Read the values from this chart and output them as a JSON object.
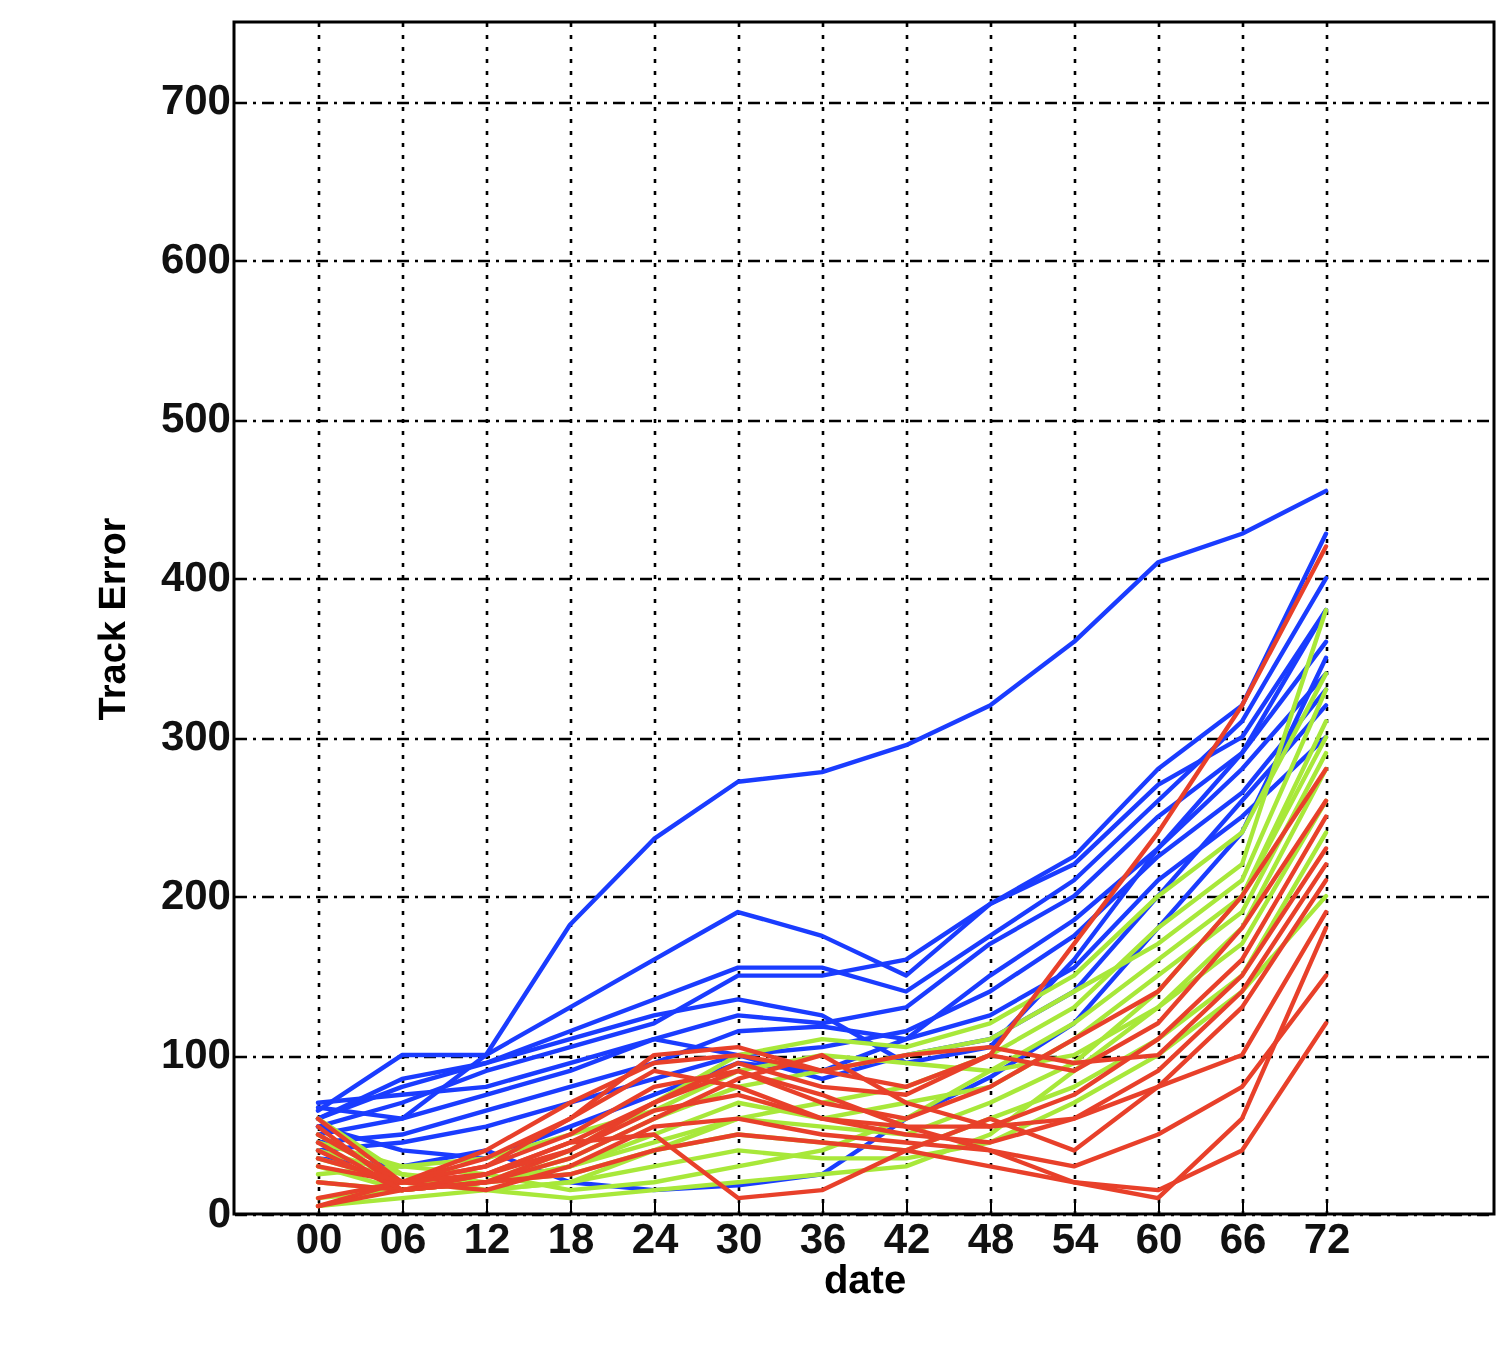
{
  "chart_data": {
    "type": "line",
    "xlabel": "date",
    "ylabel": "Track Error",
    "x": [
      0,
      6,
      12,
      18,
      24,
      30,
      36,
      42,
      48,
      54,
      60,
      66,
      72
    ],
    "xlim": [
      -6,
      84
    ],
    "xticks": [
      {
        "value": 0,
        "label": "00"
      },
      {
        "value": 6,
        "label": "06"
      },
      12,
      18,
      24,
      30,
      36,
      42,
      48,
      54,
      60,
      66,
      72
    ],
    "ylim": [
      0,
      750
    ],
    "yticks": [
      0,
      100,
      200,
      300,
      400,
      500,
      600,
      700
    ],
    "grid": true,
    "series": [
      {
        "color": "#1a3cff",
        "values": [
          67,
          60,
          100,
          182,
          236,
          272,
          278,
          295,
          320,
          360,
          410,
          428,
          455
        ]
      },
      {
        "color": "#1a3cff",
        "values": [
          65,
          100,
          100,
          130,
          160,
          190,
          175,
          150,
          195,
          225,
          280,
          320,
          428
        ]
      },
      {
        "color": "#1a3cff",
        "values": [
          60,
          80,
          95,
          115,
          135,
          155,
          155,
          140,
          175,
          210,
          260,
          310,
          400
        ]
      },
      {
        "color": "#1a3cff",
        "values": [
          55,
          70,
          90,
          105,
          120,
          150,
          150,
          160,
          195,
          220,
          270,
          300,
          380
        ]
      },
      {
        "color": "#1a3cff",
        "values": [
          50,
          60,
          75,
          90,
          110,
          125,
          120,
          130,
          170,
          200,
          250,
          290,
          360
        ]
      },
      {
        "color": "#1a3cff",
        "values": [
          45,
          50,
          65,
          80,
          95,
          115,
          118,
          110,
          150,
          185,
          230,
          280,
          340
        ]
      },
      {
        "color": "#1a3cff",
        "values": [
          40,
          45,
          55,
          70,
          85,
          100,
          105,
          115,
          140,
          175,
          225,
          265,
          330
        ]
      },
      {
        "color": "#1a3cff",
        "values": [
          35,
          30,
          40,
          20,
          15,
          18,
          25,
          60,
          86,
          120,
          180,
          240,
          350
        ]
      },
      {
        "color": "#1a3cff",
        "values": [
          70,
          75,
          80,
          95,
          110,
          100,
          85,
          100,
          110,
          140,
          200,
          260,
          320
        ]
      },
      {
        "color": "#1a3cff",
        "values": [
          55,
          40,
          35,
          55,
          75,
          95,
          90,
          110,
          125,
          155,
          210,
          250,
          300
        ]
      },
      {
        "color": "#1a3cff",
        "values": [
          60,
          85,
          95,
          110,
          125,
          135,
          125,
          95,
          105,
          160,
          230,
          290,
          380
        ]
      },
      {
        "color": "#a8e83a",
        "values": [
          60,
          25,
          15,
          20,
          40,
          60,
          70,
          80,
          100,
          130,
          180,
          220,
          380
        ]
      },
      {
        "color": "#a8e83a",
        "values": [
          50,
          20,
          20,
          35,
          60,
          80,
          90,
          100,
          110,
          140,
          170,
          210,
          330
        ]
      },
      {
        "color": "#a8e83a",
        "values": [
          45,
          30,
          25,
          15,
          20,
          30,
          40,
          60,
          90,
          120,
          160,
          200,
          310
        ]
      },
      {
        "color": "#a8e83a",
        "values": [
          40,
          25,
          20,
          30,
          50,
          70,
          60,
          70,
          80,
          110,
          150,
          190,
          290
        ]
      },
      {
        "color": "#a8e83a",
        "values": [
          35,
          20,
          15,
          10,
          15,
          20,
          25,
          30,
          50,
          90,
          130,
          180,
          280
        ]
      },
      {
        "color": "#a8e83a",
        "values": [
          30,
          15,
          20,
          40,
          70,
          100,
          110,
          105,
          120,
          150,
          200,
          240,
          340
        ]
      },
      {
        "color": "#a8e83a",
        "values": [
          25,
          30,
          35,
          50,
          65,
          90,
          100,
          95,
          90,
          100,
          130,
          170,
          260
        ]
      },
      {
        "color": "#a8e83a",
        "values": [
          20,
          15,
          20,
          25,
          40,
          50,
          45,
          40,
          60,
          80,
          110,
          150,
          240
        ]
      },
      {
        "color": "#a8e83a",
        "values": [
          10,
          15,
          20,
          30,
          45,
          60,
          55,
          50,
          70,
          95,
          140,
          200,
          300
        ]
      },
      {
        "color": "#a8e83a",
        "values": [
          5,
          10,
          15,
          20,
          30,
          40,
          35,
          35,
          45,
          70,
          100,
          140,
          200
        ]
      },
      {
        "color": "#e8402a",
        "values": [
          5,
          20,
          40,
          70,
          95,
          100,
          90,
          80,
          100,
          170,
          240,
          320,
          420
        ]
      },
      {
        "color": "#e8402a",
        "values": [
          60,
          20,
          30,
          50,
          80,
          90,
          70,
          60,
          80,
          110,
          140,
          200,
          280
        ]
      },
      {
        "color": "#e8402a",
        "values": [
          55,
          15,
          20,
          35,
          60,
          85,
          100,
          70,
          55,
          75,
          110,
          160,
          250
        ]
      },
      {
        "color": "#e8402a",
        "values": [
          40,
          15,
          25,
          45,
          70,
          95,
          80,
          75,
          100,
          90,
          120,
          180,
          260
        ]
      },
      {
        "color": "#e8402a",
        "values": [
          30,
          20,
          35,
          60,
          90,
          80,
          60,
          50,
          45,
          60,
          90,
          140,
          220
        ]
      },
      {
        "color": "#e8402a",
        "values": [
          20,
          15,
          25,
          45,
          50,
          10,
          15,
          40,
          60,
          40,
          80,
          130,
          210
        ]
      },
      {
        "color": "#e8402a",
        "values": [
          10,
          20,
          30,
          60,
          100,
          105,
          90,
          100,
          105,
          95,
          100,
          150,
          230
        ]
      },
      {
        "color": "#e8402a",
        "values": [
          5,
          15,
          20,
          40,
          70,
          90,
          75,
          55,
          40,
          20,
          10,
          60,
          180
        ]
      },
      {
        "color": "#e8402a",
        "values": [
          50,
          20,
          15,
          30,
          55,
          60,
          50,
          45,
          40,
          30,
          50,
          80,
          150
        ]
      },
      {
        "color": "#e8402a",
        "values": [
          45,
          15,
          20,
          25,
          40,
          50,
          45,
          40,
          30,
          20,
          15,
          40,
          120
        ]
      },
      {
        "color": "#e8402a",
        "values": [
          35,
          20,
          25,
          40,
          65,
          75,
          60,
          55,
          55,
          60,
          80,
          100,
          190
        ]
      }
    ]
  }
}
